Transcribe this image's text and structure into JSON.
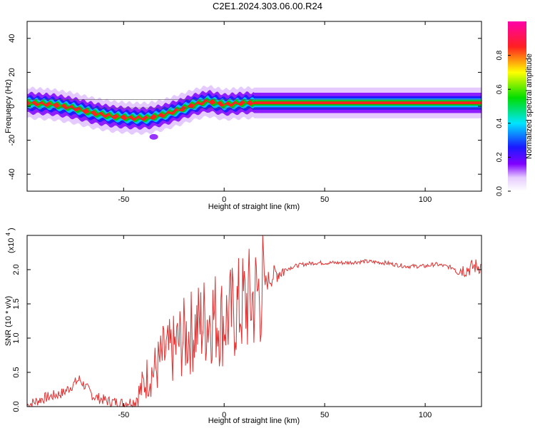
{
  "title": "C2E1.2024.303.06.00.R24",
  "chart_data": [
    {
      "type": "heatmap",
      "panel": "top",
      "xlabel": "Height of straight line (km)",
      "ylabel": "Frequency (Hz)",
      "xlim": [
        -98,
        128
      ],
      "ylim": [
        -50,
        50
      ],
      "xticks": [
        -50,
        0,
        50,
        100
      ],
      "yticks": [
        -40,
        -20,
        0,
        20,
        40
      ],
      "colorbar": {
        "label": "Normalized spectral amplitude",
        "range": [
          0,
          1
        ],
        "ticks": [
          0.0,
          0.2,
          0.4,
          0.6,
          0.8
        ],
        "tick_labels": [
          "0.0",
          "0.2",
          "0.4",
          "0.6",
          "0.8"
        ],
        "colormap": "rainbow (white, violet, blue, cyan, green, yellow, red, magenta)"
      },
      "ridge": [
        {
          "x": -98,
          "f": 2
        },
        {
          "x": -85,
          "f": 1
        },
        {
          "x": -75,
          "f": -1
        },
        {
          "x": -65,
          "f": -4
        },
        {
          "x": -55,
          "f": -6
        },
        {
          "x": -45,
          "f": -7
        },
        {
          "x": -38,
          "f": -7
        },
        {
          "x": -30,
          "f": -5
        },
        {
          "x": -22,
          "f": -2
        },
        {
          "x": -15,
          "f": 1
        },
        {
          "x": -8,
          "f": 3
        },
        {
          "x": 0,
          "f": 1
        },
        {
          "x": 10,
          "f": 2
        },
        {
          "x": 20,
          "f": 2
        },
        {
          "x": 60,
          "f": 2
        },
        {
          "x": 100,
          "f": 2
        },
        {
          "x": 128,
          "f": 2
        }
      ],
      "secondary_blob": {
        "x": -35,
        "f": -18
      },
      "reference_lines_f": [
        -1,
        4
      ]
    },
    {
      "type": "line",
      "panel": "bottom",
      "xlabel": "Height of straight line (km)",
      "ylabel": "SNR (10 * v/v)",
      "y_scale_label": "(x10",
      "y_scale_exp": "4",
      "y_scale_close": ")",
      "xlim": [
        -98,
        128
      ],
      "ylim": [
        0,
        2.5
      ],
      "xticks": [
        -50,
        0,
        50,
        100
      ],
      "yticks": [
        0.0,
        0.5,
        1.0,
        1.5,
        2.0
      ],
      "ytick_labels": [
        "0.0",
        "0.5",
        "1.0",
        "1.5",
        "2.0"
      ],
      "color": "#e03030",
      "series": [
        {
          "x": [
            -98,
            -90,
            -80,
            -72,
            -65,
            -58,
            -50,
            -45,
            -42,
            -38,
            -34,
            -30,
            -26,
            -22,
            -18,
            -14,
            -10,
            -6,
            -2,
            2,
            6,
            10,
            14,
            18,
            22,
            26,
            30,
            35,
            40,
            45,
            50,
            60,
            70,
            80,
            90,
            100,
            105,
            110,
            115,
            120,
            125,
            128
          ],
          "values": [
            0.02,
            0.12,
            0.2,
            0.4,
            0.15,
            0.08,
            0.05,
            0.08,
            0.2,
            0.45,
            0.55,
            0.75,
            0.8,
            0.95,
            1.05,
            1.15,
            1.25,
            1.35,
            1.25,
            1.3,
            1.4,
            1.5,
            1.55,
            1.7,
            1.85,
            1.95,
            2.0,
            2.05,
            2.08,
            2.1,
            2.1,
            2.1,
            2.12,
            2.1,
            2.05,
            2.05,
            2.08,
            2.05,
            2.02,
            2.0,
            2.05,
            2.05
          ]
        }
      ]
    }
  ],
  "xtick_labels": [
    "-50",
    "0",
    "50",
    "100"
  ],
  "ytick_labels_top": [
    "40",
    "20",
    "0",
    "-20",
    "-40"
  ]
}
